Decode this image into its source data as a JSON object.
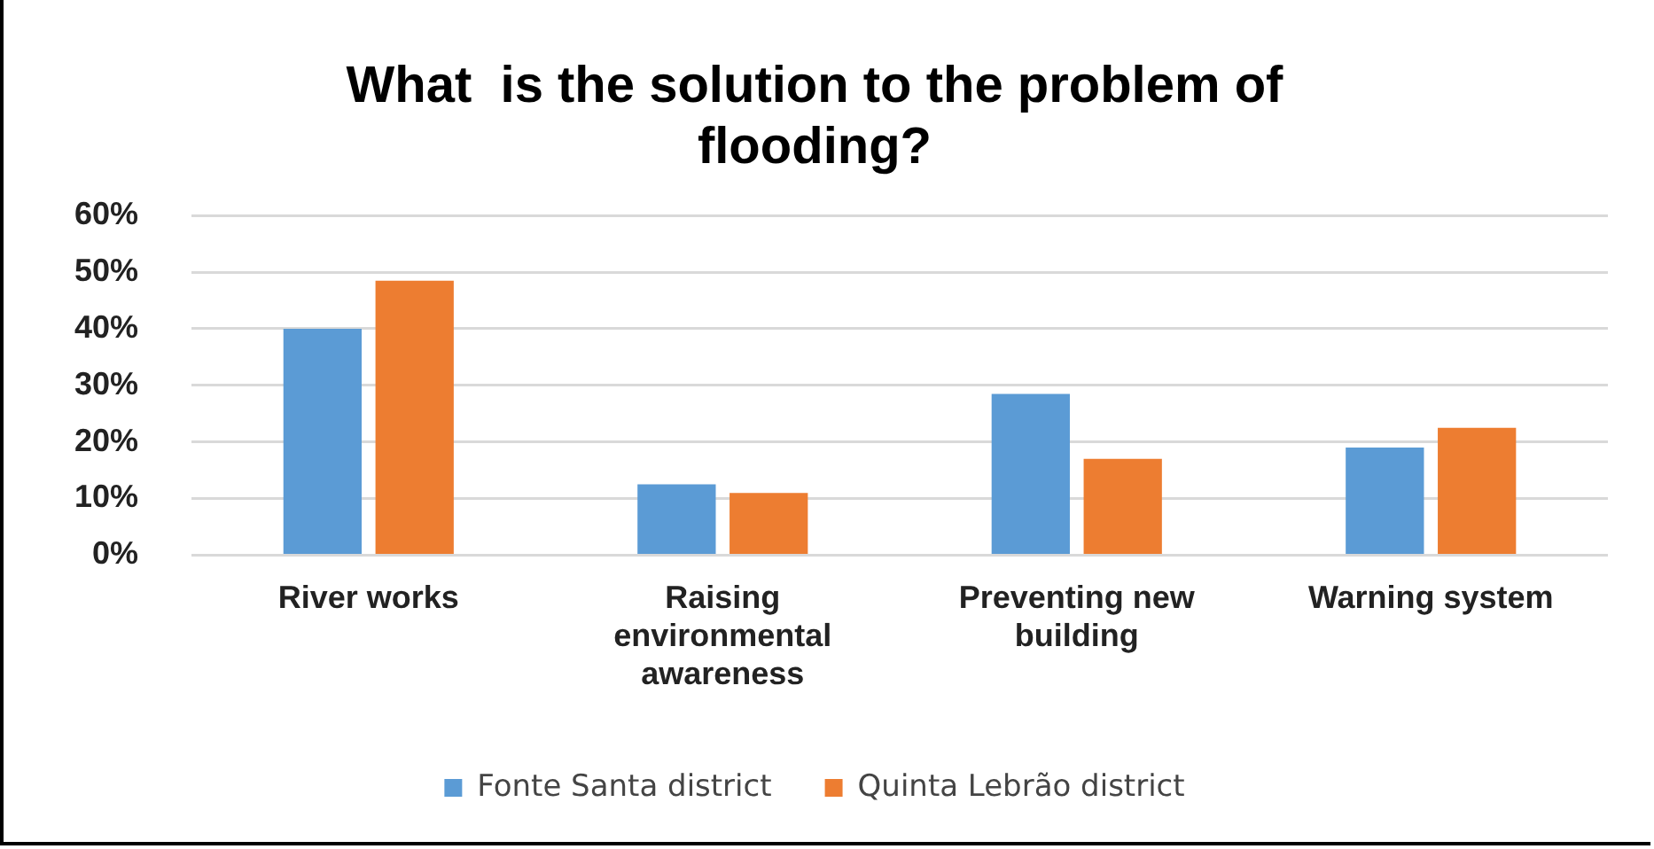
{
  "chart_data": {
    "type": "bar",
    "title": "What  is the solution to the problem of flooding?",
    "categories": [
      "River works",
      "Raising environmental awareness",
      "Preventing new building",
      "Warning system"
    ],
    "series": [
      {
        "name": "Fonte Santa district",
        "color": "#5b9bd5",
        "values": [
          40,
          12.5,
          28.5,
          19
        ]
      },
      {
        "name": "Quinta Lebrão district",
        "color": "#ed7d31",
        "values": [
          48.5,
          11,
          17,
          22.5
        ]
      }
    ],
    "ylim": [
      0,
      60
    ],
    "yticks": [
      {
        "value": 0,
        "label": "0%"
      },
      {
        "value": 10,
        "label": "10%"
      },
      {
        "value": 20,
        "label": "20%"
      },
      {
        "value": 30,
        "label": "30%"
      },
      {
        "value": 40,
        "label": "40%"
      },
      {
        "value": 50,
        "label": "50%"
      },
      {
        "value": 60,
        "label": "60%"
      }
    ],
    "grid": "y",
    "legend": "bottom"
  }
}
